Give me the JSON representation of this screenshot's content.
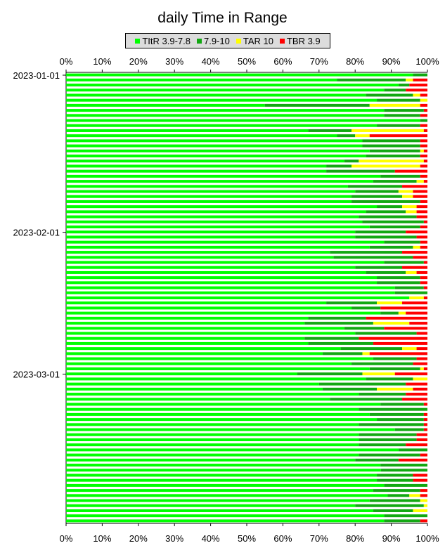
{
  "chart_data": {
    "type": "bar",
    "orientation": "horizontal",
    "stacked": true,
    "title": "daily Time in Range",
    "xlabel": "",
    "ylabel": "",
    "xlim": [
      0,
      100
    ],
    "x_ticks": [
      "0%",
      "10%",
      "20%",
      "30%",
      "40%",
      "50%",
      "60%",
      "70%",
      "80%",
      "90%",
      "100%"
    ],
    "date_ticks": [
      "2023-01-01",
      "2023-02-01",
      "2023-03-01"
    ],
    "legend_position": "top",
    "grid": false,
    "colors": [
      "#00ff00",
      "#12a812",
      "#ffff00",
      "#ff0000"
    ],
    "legend": [
      "TItR 3.9-7.8",
      "7.9-10",
      "TAR 10",
      "TBR 3.9"
    ],
    "series": [
      {
        "name": "TItR 3.9-7.8",
        "values": [
          96,
          75,
          92,
          88,
          83,
          86,
          55,
          88,
          88,
          98,
          86,
          67,
          75,
          82,
          82,
          84,
          83,
          77,
          72,
          72,
          87,
          85,
          78,
          80,
          79,
          79,
          86,
          83,
          81,
          82,
          84,
          80,
          80,
          88,
          84,
          73,
          74,
          88,
          80,
          83,
          86,
          86,
          91,
          91,
          95,
          72,
          79,
          87,
          67,
          66,
          77,
          80,
          66,
          67,
          76,
          71,
          85,
          79,
          84,
          64,
          83,
          70,
          71,
          81,
          73,
          87,
          81,
          84,
          86,
          81,
          91,
          81,
          81,
          81,
          92,
          81,
          80,
          87,
          88,
          86,
          86,
          88,
          85,
          89,
          84,
          80,
          85,
          88,
          88
        ],
        "note_values_ignore": []
      },
      {
        "name": "7.9-10",
        "values": [
          4,
          19,
          3,
          6,
          13,
          12,
          29,
          11,
          10,
          2,
          12,
          12,
          5,
          16,
          16,
          14,
          15,
          4,
          7,
          19,
          11,
          12,
          15,
          12,
          14,
          19,
          7,
          11,
          16,
          17,
          14,
          14,
          17,
          10,
          12,
          20,
          22,
          11,
          13,
          11,
          12,
          12,
          8,
          9,
          0,
          14,
          8,
          5,
          16,
          19,
          11,
          17,
          15,
          18,
          17,
          11,
          12,
          17,
          14,
          18,
          13,
          24,
          15,
          13,
          20,
          12,
          19,
          15,
          13,
          18,
          8,
          16,
          16,
          13,
          8,
          17,
          12,
          13,
          13,
          10,
          10,
          12,
          13,
          6,
          14,
          19,
          11,
          12,
          10
        ],
        "note_values_ignore": []
      },
      {
        "name": "TAR 10",
        "values": [
          0,
          2,
          0,
          0,
          2,
          2,
          14,
          0,
          0,
          0,
          0,
          20,
          4,
          0,
          0,
          1,
          0,
          18,
          19,
          0,
          0,
          2,
          0,
          4,
          3,
          0,
          4,
          3,
          0,
          0,
          0,
          0,
          0,
          0,
          2,
          0,
          0,
          0,
          0,
          3,
          0,
          0,
          0,
          0,
          4,
          7,
          0,
          2,
          0,
          10,
          0,
          0,
          0,
          0,
          4,
          2,
          0,
          0,
          1,
          9,
          4,
          0,
          10,
          0,
          0,
          0,
          0,
          0,
          0,
          0,
          0,
          0,
          0,
          0,
          0,
          0,
          0,
          0,
          0,
          0,
          0,
          0,
          0,
          3,
          2,
          1,
          4,
          0,
          0
        ],
        "note_values_ignore": []
      },
      {
        "name": "TBR 3.9",
        "values": [
          0,
          4,
          5,
          6,
          2,
          0,
          2,
          1,
          2,
          0,
          2,
          1,
          16,
          2,
          2,
          1,
          2,
          1,
          2,
          9,
          2,
          1,
          7,
          4,
          4,
          2,
          3,
          3,
          3,
          1,
          2,
          6,
          3,
          2,
          2,
          7,
          4,
          1,
          7,
          3,
          2,
          2,
          1,
          0,
          1,
          7,
          13,
          6,
          17,
          5,
          12,
          3,
          19,
          15,
          3,
          16,
          3,
          4,
          1,
          9,
          0,
          6,
          4,
          6,
          7,
          1,
          0,
          1,
          1,
          1,
          1,
          3,
          3,
          6,
          0,
          2,
          8,
          0,
          0,
          4,
          4,
          0,
          2,
          2,
          0,
          0,
          0,
          0,
          2
        ],
        "note_values_ignore": []
      }
    ]
  }
}
